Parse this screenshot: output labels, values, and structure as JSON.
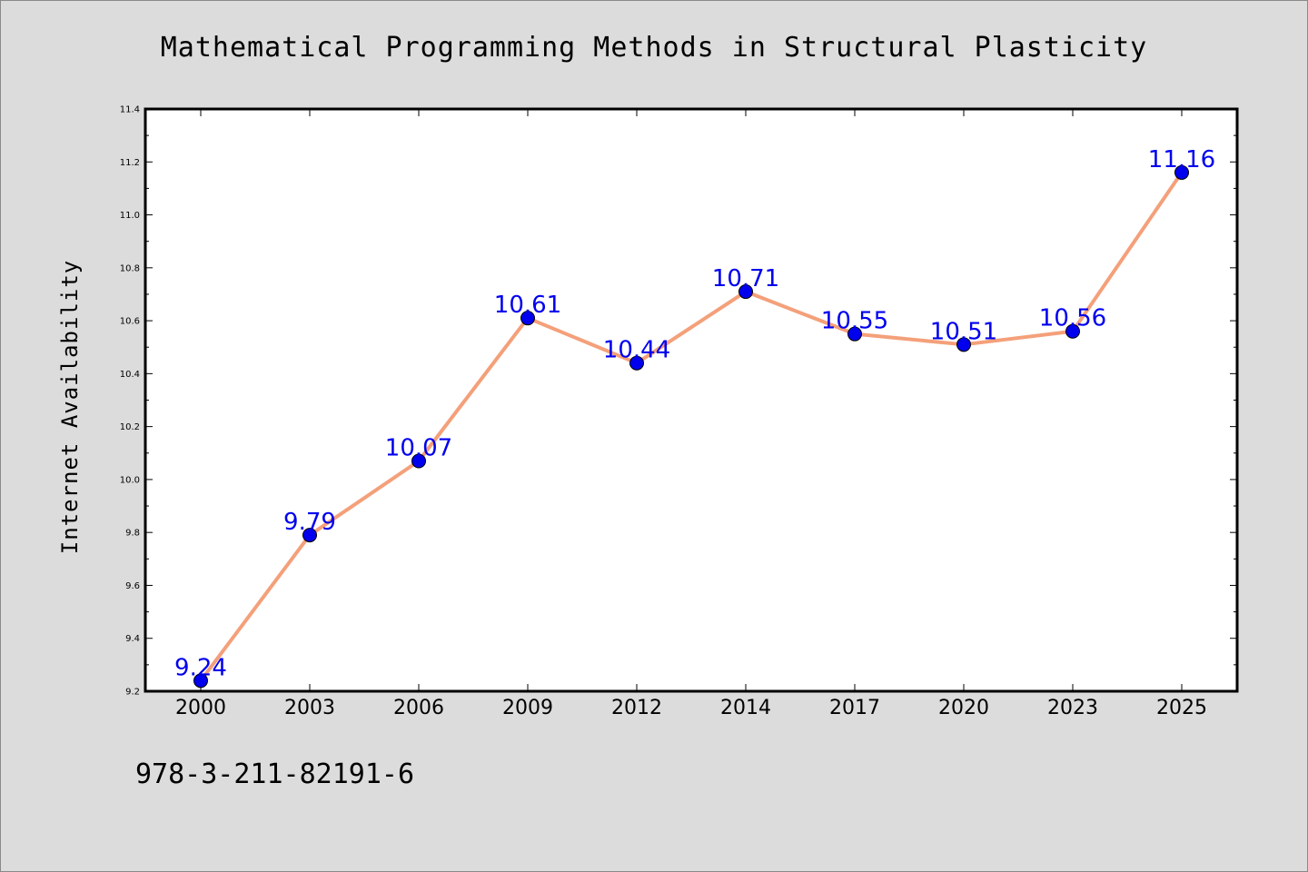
{
  "chart_data": {
    "type": "line",
    "title": "Mathematical Programming Methods in Structural Plasticity",
    "xlabel": "",
    "ylabel": "Internet Availability",
    "categories": [
      "2000",
      "2003",
      "2006",
      "2009",
      "2012",
      "2014",
      "2017",
      "2020",
      "2023",
      "2025"
    ],
    "series": [
      {
        "values": [
          9.24,
          9.79,
          10.07,
          10.61,
          10.44,
          10.71,
          10.55,
          10.51,
          10.56,
          11.16
        ],
        "data_labels": [
          "9.24",
          "9.79",
          "10.07",
          "10.61",
          "10.44",
          "10.71",
          "10.55",
          "10.51",
          "10.56",
          "11.16"
        ],
        "line_color": "#f4a07a",
        "marker_color": "#0000ee",
        "label_color": "#0000ee"
      }
    ],
    "ylim": [
      9.2,
      11.4
    ],
    "yticks": [
      "9.2",
      "9.4",
      "9.6",
      "9.8",
      "10.0",
      "10.2",
      "10.4",
      "10.6",
      "10.8",
      "11.0",
      "11.2",
      "11.4"
    ],
    "grid": false,
    "legend": "none",
    "background_color": "#dcdcdc",
    "plot_background": "#ffffff"
  },
  "footnote": "978-3-211-82191-6"
}
